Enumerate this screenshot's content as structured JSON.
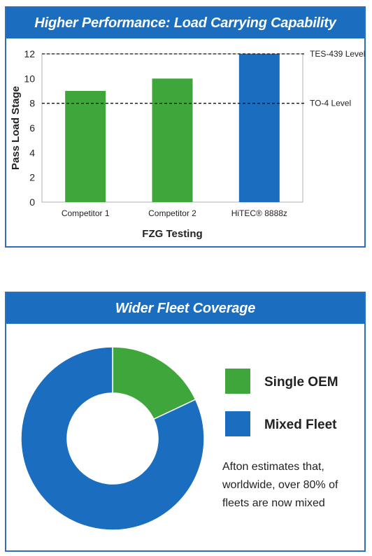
{
  "chart_data": [
    {
      "type": "bar",
      "title": "Higher Performance: Load Carrying Capability",
      "xlabel": "FZG Testing",
      "ylabel": "Pass Load Stage",
      "categories": [
        "Competitor 1",
        "Competitor 2",
        "HiTEC® 8888z"
      ],
      "values": [
        9,
        10,
        12
      ],
      "bar_colors": [
        "#3fa63b",
        "#3fa63b",
        "#1a6dbf"
      ],
      "ylim": [
        0,
        12
      ],
      "yticks": [
        0,
        2,
        4,
        6,
        8,
        10,
        12
      ],
      "reference_lines": [
        {
          "label": "TES-439 Level",
          "value": 12
        },
        {
          "label": "TO-4 Level",
          "value": 8
        }
      ],
      "grid": false
    },
    {
      "type": "pie",
      "title": "Wider Fleet Coverage",
      "donut": true,
      "labels": [
        "Single OEM",
        "Mixed Fleet"
      ],
      "values": [
        18,
        82
      ],
      "colors": [
        "#3fa63b",
        "#1a6dbf"
      ],
      "legend_position": "right",
      "note_lines": [
        "Afton estimates that,",
        "worldwide, over 80% of",
        "fleets are now mixed"
      ]
    }
  ]
}
